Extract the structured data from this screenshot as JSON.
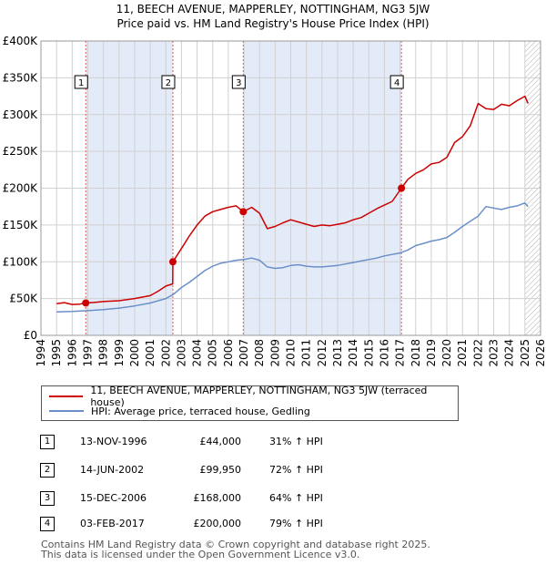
{
  "title_line1": "11, BEECH AVENUE, MAPPERLEY, NOTTINGHAM, NG3 5JW",
  "title_line2": "Price paid vs. HM Land Registry's House Price Index (HPI)",
  "colors": {
    "price_line": "#cc0000",
    "hpi_line": "#6b8fc9",
    "shade": "#e4ebf8",
    "grid": "#d0d0d0",
    "sale_vline": "#e06060"
  },
  "legend": {
    "price_label": "11, BEECH AVENUE, MAPPERLEY, NOTTINGHAM, NG3 5JW (terraced house)",
    "hpi_label": "HPI: Average price, terraced house, Gedling"
  },
  "sales": [
    {
      "num": "1",
      "date": "13-NOV-1996",
      "price": "£44,000",
      "hpi": "31% ↑ HPI"
    },
    {
      "num": "2",
      "date": "14-JUN-2002",
      "price": "£99,950",
      "hpi": "72% ↑ HPI"
    },
    {
      "num": "3",
      "date": "15-DEC-2006",
      "price": "£168,000",
      "hpi": "64% ↑ HPI"
    },
    {
      "num": "4",
      "date": "03-FEB-2017",
      "price": "£200,000",
      "hpi": "79% ↑ HPI"
    }
  ],
  "footer_line1": "Contains HM Land Registry data © Crown copyright and database right 2025.",
  "footer_line2": "This data is licensed under the Open Government Licence v3.0.",
  "chart_data": {
    "type": "line",
    "xlim": [
      1994,
      2026
    ],
    "ylim": [
      0,
      400000
    ],
    "y_ticks": [
      0,
      50000,
      100000,
      150000,
      200000,
      250000,
      300000,
      350000,
      400000
    ],
    "y_tick_labels": [
      "£0",
      "£50K",
      "£100K",
      "£150K",
      "£200K",
      "£250K",
      "£300K",
      "£350K",
      "£400K"
    ],
    "x_ticks": [
      1994,
      1995,
      1996,
      1997,
      1998,
      1999,
      2000,
      2001,
      2002,
      2003,
      2004,
      2005,
      2006,
      2007,
      2008,
      2009,
      2010,
      2011,
      2012,
      2013,
      2014,
      2015,
      2016,
      2017,
      2018,
      2019,
      2020,
      2021,
      2022,
      2023,
      2024,
      2025,
      2026
    ],
    "shaded_ranges": [
      [
        1996.87,
        2002.45
      ],
      [
        2006.96,
        2017.09
      ]
    ],
    "hatched_from": 2025.0,
    "sale_points": [
      {
        "label": "1",
        "x": 1996.87,
        "y": 44000
      },
      {
        "label": "2",
        "x": 2002.45,
        "y": 99950
      },
      {
        "label": "3",
        "x": 2006.96,
        "y": 168000
      },
      {
        "label": "4",
        "x": 2017.09,
        "y": 200000
      }
    ],
    "series": [
      {
        "name": "11, BEECH AVENUE, MAPPERLEY, NOTTINGHAM, NG3 5JW (terraced house)",
        "color": "#cc0000",
        "x": [
          1995.0,
          1995.5,
          1996.0,
          1996.5,
          1996.87,
          1997.5,
          1998.0,
          1999.0,
          2000.0,
          2001.0,
          2001.5,
          2002.0,
          2002.44,
          2002.45,
          2003.0,
          2003.5,
          2004.0,
          2004.5,
          2005.0,
          2005.5,
          2006.0,
          2006.5,
          2006.96,
          2007.5,
          2008.0,
          2008.5,
          2009.0,
          2009.5,
          2010.0,
          2010.5,
          2011.0,
          2011.5,
          2012.0,
          2012.5,
          2013.0,
          2013.5,
          2014.0,
          2014.5,
          2015.0,
          2015.5,
          2016.0,
          2016.5,
          2017.09,
          2017.5,
          2018.0,
          2018.5,
          2019.0,
          2019.5,
          2020.0,
          2020.5,
          2021.0,
          2021.5,
          2022.0,
          2022.5,
          2023.0,
          2023.5,
          2024.0,
          2024.5,
          2025.0,
          2025.2
        ],
        "y": [
          43000,
          44500,
          42000,
          42500,
          44000,
          45000,
          46000,
          47000,
          50000,
          54000,
          60000,
          67000,
          70000,
          99950,
          118000,
          135000,
          150000,
          162000,
          168000,
          171000,
          174000,
          176000,
          168000,
          174000,
          166000,
          145000,
          148000,
          153000,
          157000,
          154000,
          151000,
          148000,
          150000,
          149000,
          151000,
          153000,
          157000,
          160000,
          166000,
          172000,
          177000,
          182000,
          200000,
          212000,
          220000,
          225000,
          233000,
          235000,
          242000,
          262000,
          270000,
          285000,
          315000,
          308000,
          307000,
          314000,
          312000,
          319000,
          325000,
          315000
        ]
      },
      {
        "name": "HPI: Average price, terraced house, Gedling",
        "color": "#6b8fc9",
        "x": [
          1995.0,
          1996.0,
          1997.0,
          1998.0,
          1999.0,
          2000.0,
          2001.0,
          2002.0,
          2002.5,
          2003.0,
          2003.5,
          2004.0,
          2004.5,
          2005.0,
          2005.5,
          2006.0,
          2006.5,
          2007.0,
          2007.5,
          2008.0,
          2008.5,
          2009.0,
          2009.5,
          2010.0,
          2010.5,
          2011.0,
          2011.5,
          2012.0,
          2012.5,
          2013.0,
          2013.5,
          2014.0,
          2014.5,
          2015.0,
          2015.5,
          2016.0,
          2016.5,
          2017.0,
          2017.5,
          2018.0,
          2018.5,
          2019.0,
          2019.5,
          2020.0,
          2020.5,
          2021.0,
          2021.5,
          2022.0,
          2022.5,
          2023.0,
          2023.5,
          2024.0,
          2024.5,
          2025.0,
          2025.2
        ],
        "y": [
          32000,
          32500,
          33500,
          35000,
          37000,
          40000,
          44000,
          50000,
          56000,
          65000,
          72000,
          80000,
          88000,
          94000,
          98000,
          100000,
          102000,
          103000,
          105000,
          102000,
          93000,
          91000,
          92000,
          95000,
          96000,
          94000,
          93000,
          93000,
          94000,
          95000,
          97000,
          99000,
          101000,
          103000,
          105000,
          108000,
          110000,
          112000,
          116000,
          122000,
          125000,
          128000,
          130000,
          133000,
          140000,
          148000,
          155000,
          162000,
          175000,
          173000,
          171000,
          174000,
          176000,
          180000,
          175000
        ]
      }
    ]
  }
}
